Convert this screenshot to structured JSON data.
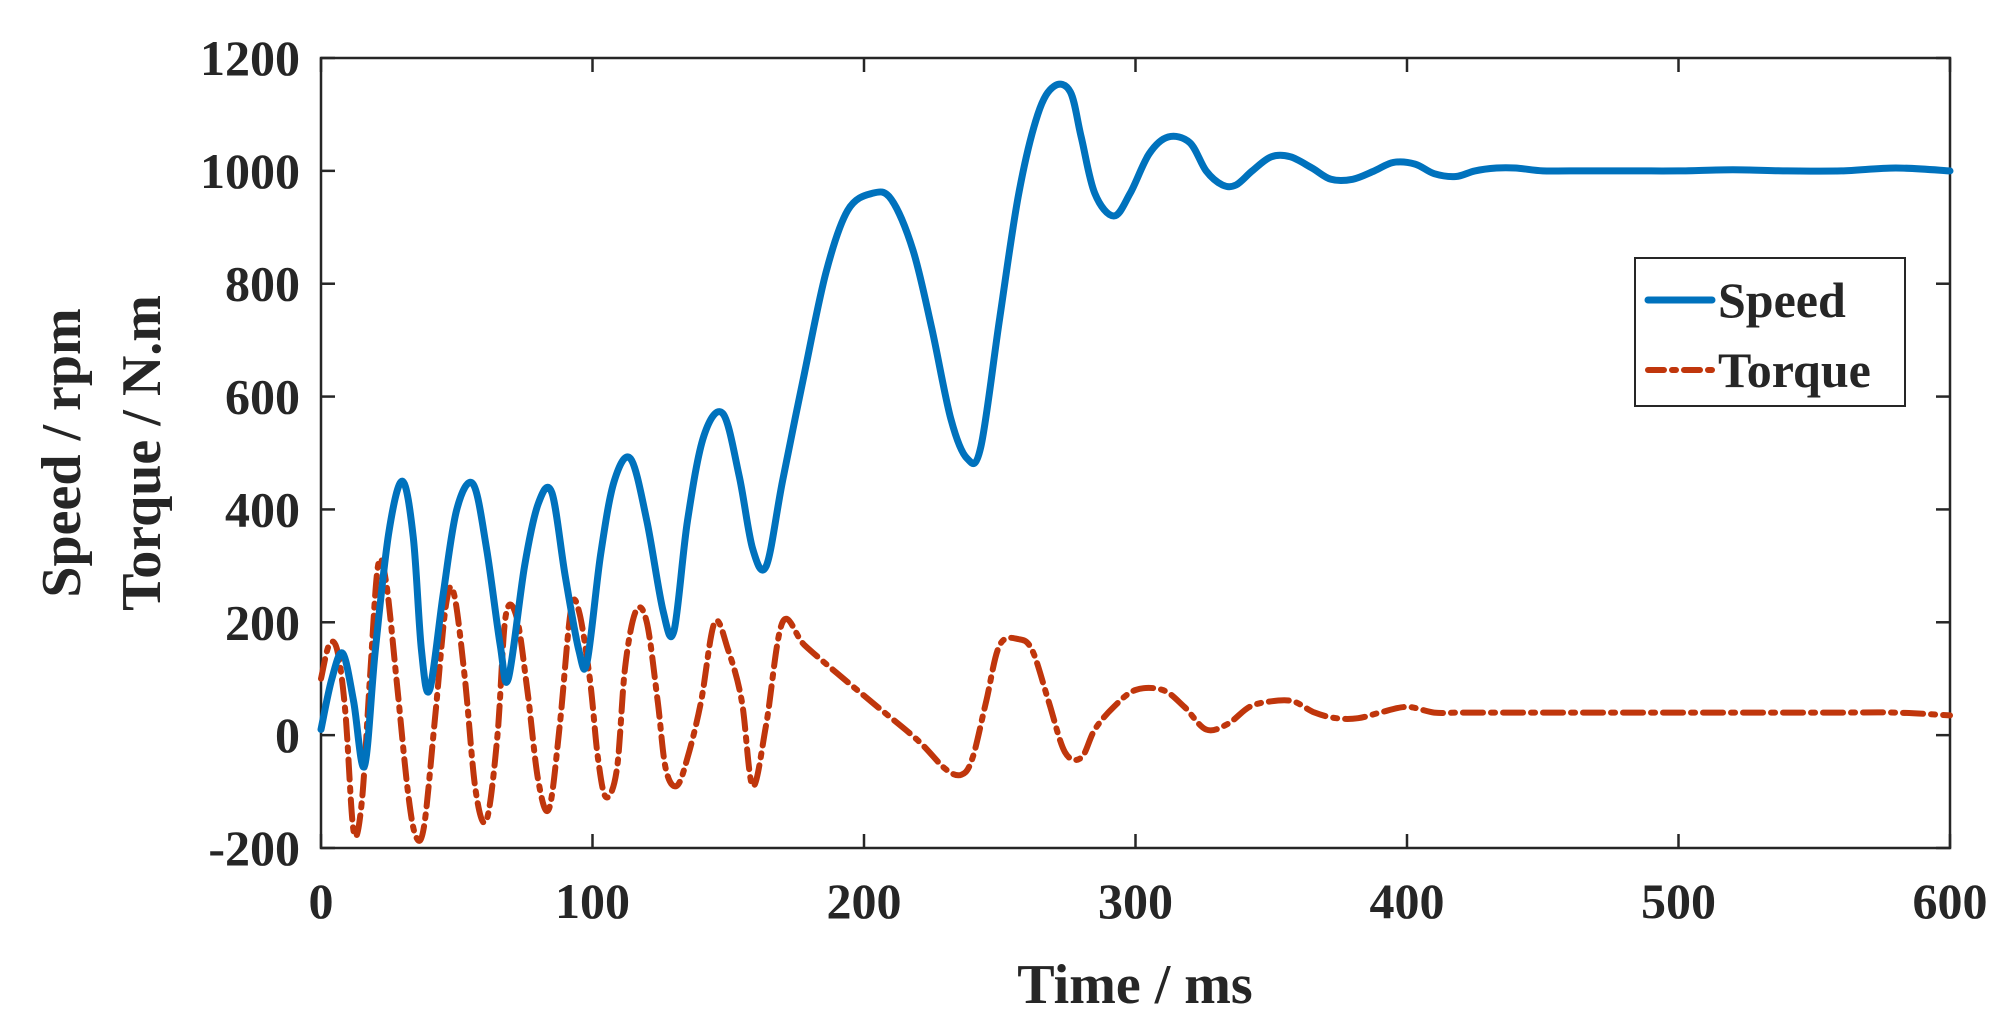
{
  "chart_data": {
    "type": "line",
    "title": "",
    "xlabel": "Time / ms",
    "ylabel_lines": [
      "Speed / rpm",
      "Torque / N.m"
    ],
    "xlim": [
      0,
      600
    ],
    "ylim": [
      -200,
      1200
    ],
    "xticks": [
      0,
      100,
      200,
      300,
      400,
      500,
      600
    ],
    "yticks": [
      -200,
      0,
      200,
      400,
      600,
      800,
      1000,
      1200
    ],
    "grid": false,
    "legend_position": "right",
    "series": [
      {
        "name": "Speed",
        "color": "#0072BD",
        "style": "solid",
        "x": [
          0,
          4,
          8,
          12,
          16,
          20,
          25,
          30,
          34,
          37,
          40,
          45,
          50,
          56,
          61,
          66,
          69,
          75,
          80,
          85,
          90,
          95,
          98,
          103,
          108,
          114,
          120,
          126,
          130,
          135,
          141,
          148,
          154,
          159,
          164,
          170,
          178,
          186,
          194,
          203,
          210,
          218,
          225,
          232,
          238,
          243,
          250,
          257,
          264,
          270,
          276,
          280,
          285,
          292,
          298,
          305,
          312,
          320,
          326,
          332,
          337,
          343,
          350,
          357,
          365,
          372,
          380,
          388,
          395,
          403,
          410,
          418,
          425,
          433,
          440,
          450,
          460,
          480,
          500,
          520,
          540,
          560,
          580,
          600
        ],
        "y": [
          10,
          100,
          145,
          60,
          -55,
          150,
          360,
          450,
          350,
          150,
          80,
          250,
          400,
          445,
          330,
          160,
          100,
          300,
          410,
          430,
          280,
          150,
          130,
          320,
          450,
          490,
          380,
          220,
          185,
          380,
          530,
          570,
          460,
          330,
          300,
          450,
          640,
          820,
          930,
          960,
          950,
          860,
          720,
          560,
          490,
          510,
          740,
          960,
          1100,
          1150,
          1140,
          1060,
          960,
          920,
          960,
          1030,
          1060,
          1050,
          1000,
          975,
          975,
          1000,
          1025,
          1025,
          1005,
          985,
          985,
          1000,
          1015,
          1012,
          995,
          990,
          1000,
          1005,
          1005,
          1000,
          1000,
          1000,
          1000,
          1002,
          1000,
          1000,
          1005,
          1000
        ]
      },
      {
        "name": "Torque",
        "color": "#C0360C",
        "style": "dashed",
        "x": [
          0,
          3,
          6,
          9,
          12,
          15,
          18,
          21,
          24,
          28,
          32,
          35,
          38,
          42,
          46,
          49,
          53,
          57,
          61,
          65,
          68,
          72,
          76,
          80,
          84,
          88,
          92,
          95,
          99,
          102,
          105,
          109,
          112,
          116,
          120,
          124,
          127,
          131,
          135,
          140,
          145,
          150,
          155,
          159,
          164,
          170,
          178,
          190,
          205,
          220,
          230,
          236,
          240,
          245,
          250,
          257,
          262,
          268,
          274,
          280,
          285,
          292,
          300,
          310,
          318,
          326,
          334,
          342,
          350,
          358,
          366,
          374,
          382,
          390,
          400,
          410,
          420,
          440,
          460,
          480,
          500,
          520,
          540,
          560,
          580,
          600
        ],
        "y": [
          100,
          160,
          150,
          40,
          -170,
          -120,
          100,
          300,
          270,
          90,
          -100,
          -180,
          -160,
          30,
          230,
          250,
          100,
          -100,
          -150,
          0,
          210,
          210,
          80,
          -80,
          -130,
          20,
          220,
          220,
          100,
          -40,
          -110,
          -60,
          120,
          220,
          200,
          60,
          -60,
          -90,
          -40,
          60,
          200,
          150,
          60,
          -90,
          20,
          200,
          160,
          110,
          50,
          -10,
          -60,
          -70,
          -40,
          60,
          160,
          170,
          150,
          60,
          -30,
          -40,
          10,
          50,
          80,
          80,
          50,
          10,
          20,
          50,
          60,
          60,
          40,
          30,
          30,
          40,
          50,
          40,
          40,
          40,
          40,
          40,
          40,
          40,
          40,
          40,
          40,
          35
        ]
      }
    ]
  }
}
